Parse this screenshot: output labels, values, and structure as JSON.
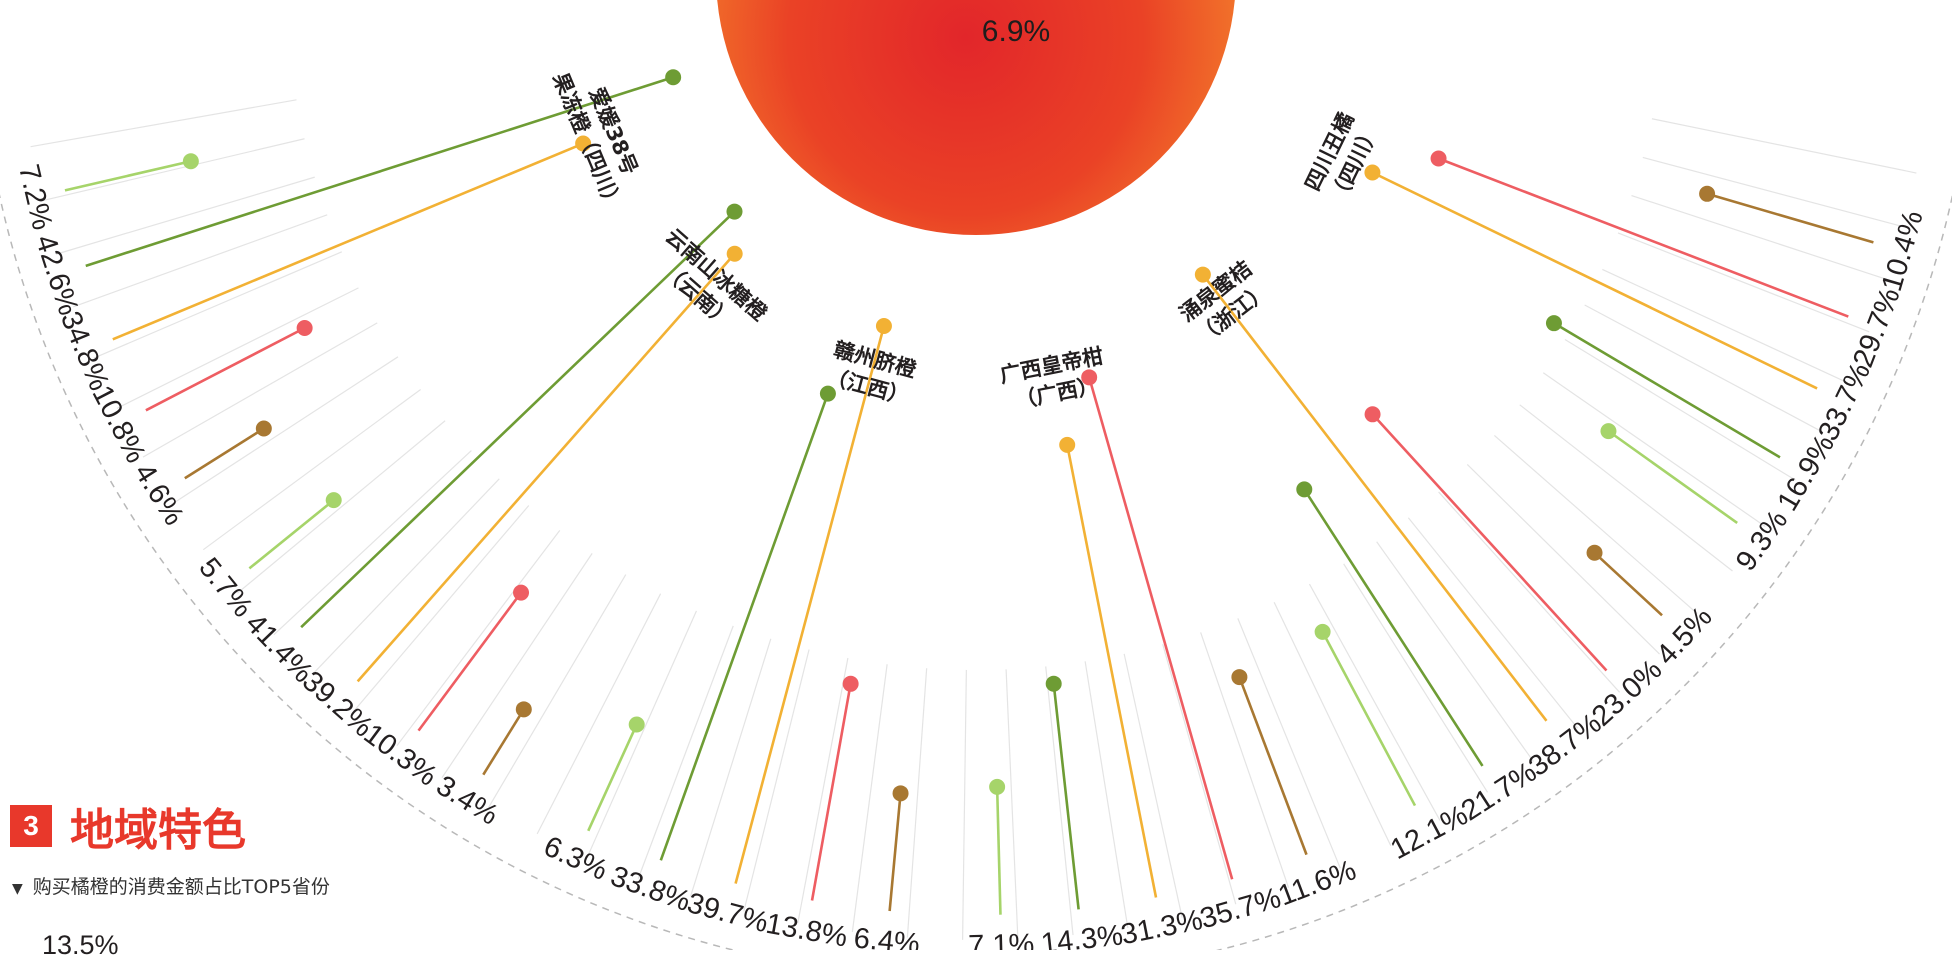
{
  "chart_data": {
    "type": "radial-lollipop",
    "center_value": "6.9%",
    "categories": [
      {
        "name_lines": [
          "爱媛38号",
          "果冻橙（四川）"
        ],
        "values": [
          "7.2%",
          "42.6%",
          "34.8%",
          "10.8%",
          "4.6%"
        ],
        "nums": [
          7.2,
          42.6,
          34.8,
          10.8,
          4.6
        ]
      },
      {
        "name_lines": [
          "云南山冰糖橙",
          "（云南）"
        ],
        "values": [
          "5.7%",
          "41.4%",
          "39.2%",
          "10.3%",
          "3.4%"
        ],
        "nums": [
          5.7,
          41.4,
          39.2,
          10.3,
          3.4
        ]
      },
      {
        "name_lines": [
          "赣州脐橙",
          "（江西）"
        ],
        "values": [
          "6.3%",
          "33.8%",
          "39.7%",
          "13.8%",
          "6.4%"
        ],
        "nums": [
          6.3,
          33.8,
          39.7,
          13.8,
          6.4
        ]
      },
      {
        "name_lines": [
          "广西皇帝柑",
          "（广西）"
        ],
        "values": [
          "7.1%",
          "14.3%",
          "31.3%",
          "35.7%",
          "11.6%"
        ],
        "nums": [
          7.1,
          14.3,
          31.3,
          35.7,
          11.6
        ]
      },
      {
        "name_lines": [
          "涌泉蜜桔",
          "（浙江）"
        ],
        "values": [
          "12.1%",
          "21.7%",
          "38.7%",
          "23.0%",
          "4.5%"
        ],
        "nums": [
          12.1,
          21.7,
          38.7,
          23.0,
          4.5
        ]
      },
      {
        "name_lines": [
          "四川丑橘",
          "（四川）"
        ],
        "values": [
          "9.3%",
          "16.9%",
          "33.7%",
          "29.7%",
          "10.4%"
        ],
        "nums": [
          9.3,
          16.9,
          33.7,
          29.7,
          10.4
        ]
      }
    ],
    "series_colors": [
      "#a6d46a",
      "#6e9c34",
      "#f2b134",
      "#ee5d62",
      "#a87832"
    ]
  },
  "section": {
    "number": "3",
    "title": "地域特色",
    "subtitle": "购买橘橙的消费金额占比TOP5省份",
    "first_value": "13.5%"
  },
  "colors": {
    "accent": "#e8382b",
    "orange": "#f06a2c",
    "ring": "#b8b8b8"
  }
}
